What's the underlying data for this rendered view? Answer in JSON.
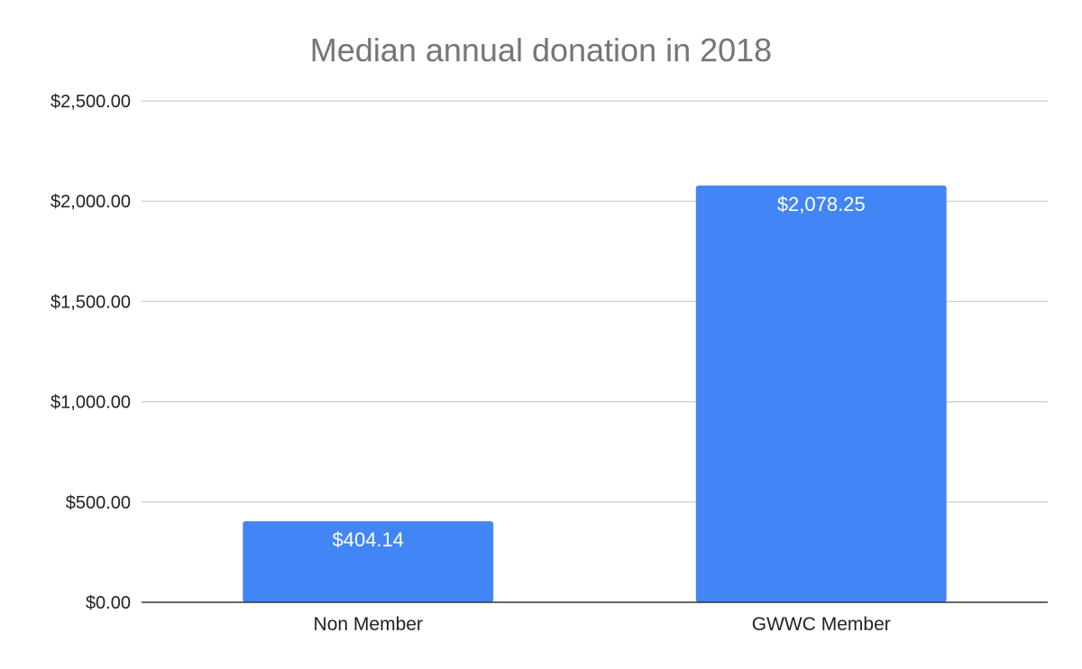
{
  "chart_data": {
    "type": "bar",
    "title": "Median annual donation in 2018",
    "categories": [
      "Non Member",
      "GWWC Member"
    ],
    "values": [
      404.14,
      2078.25
    ],
    "data_labels": [
      "$404.14",
      "$2,078.25"
    ],
    "ylim": [
      0,
      2500
    ],
    "yticks": [
      0,
      500,
      1000,
      1500,
      2000,
      2500
    ],
    "ytick_labels": [
      "$0.00",
      "$500.00",
      "$1,000.00",
      "$1,500.00",
      "$2,000.00",
      "$2,500.00"
    ],
    "xlabel": "",
    "ylabel": "",
    "grid": true,
    "legend": "none",
    "bar_color": "#4285f4"
  }
}
